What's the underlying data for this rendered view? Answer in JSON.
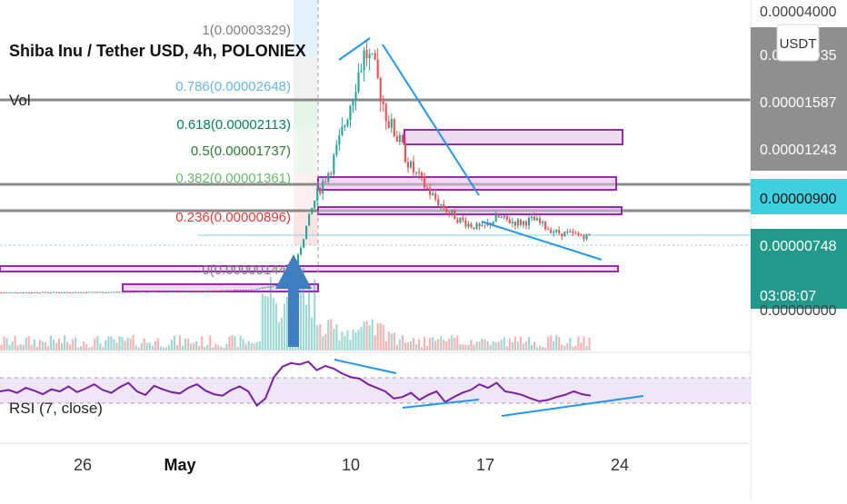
{
  "header": {
    "title": "Shiba Inu / Tether USD, 4h, POLONIEX",
    "volume_label": "Vol",
    "rsi_label": "RSI (7, close)"
  },
  "currency_button": "USDT",
  "price_scale": {
    "labels": [
      "0.00004000",
      "0.00001935",
      "0.00001587",
      "0.00001243",
      "0.00000900",
      "0.00000748",
      "0.00000000"
    ],
    "current_price": "0.00000748",
    "countdown": "03:08:07"
  },
  "time_axis": {
    "labels": [
      "26",
      "May",
      "10",
      "17",
      "24"
    ]
  },
  "colors": {
    "up": "#26a69a",
    "down": "#ef5350",
    "rsi_line": "#7b1fa2",
    "trendline": "#2196f3",
    "zone_border": "#9c27b0",
    "zone_fill": "#e1bee7",
    "level_line": "#8a8a8a",
    "arrow": "#3f7fbf",
    "axis_badge_gray": "#8f8f8f",
    "axis_badge_cyan": "#3fd0e0",
    "axis_badge_teal": "#22998a",
    "fib_1": "#808080",
    "fib_786": "#64b5f6",
    "fib_618": "#087f5b",
    "fib_5": "#2e7d32",
    "fib_382": "#66bb6a",
    "fib_236": "#e53935",
    "fib_0": "#808080"
  },
  "chart_data": {
    "type": "candlestick",
    "symbol": "Shiba Inu / Tether USD",
    "interval": "4h",
    "exchange": "POLONIEX",
    "x_ticks": [
      "26",
      "May",
      "10",
      "17",
      "24"
    ],
    "price_axis_labels": [
      "0.00004000",
      "0.00001935",
      "0.00001587",
      "0.00001243",
      "0.00000900",
      "0.00000748",
      "0.00000000"
    ],
    "current_price": 7.48e-06,
    "fib_retracement": [
      {
        "level": "1",
        "price": "0.00003329",
        "color": "#808080"
      },
      {
        "level": "0.786",
        "price": "0.00002648",
        "color": "#64b5f6"
      },
      {
        "level": "0.618",
        "price": "0.00002113",
        "color": "#087f5b"
      },
      {
        "level": "0.5",
        "price": "0.00001737",
        "color": "#2e7d32"
      },
      {
        "level": "0.382",
        "price": "0.00001361",
        "color": "#66bb6a"
      },
      {
        "level": "0.236",
        "price": "0.00000896",
        "color": "#e53935"
      },
      {
        "level": "0",
        "price": "0.00000144",
        "color": "#808080"
      }
    ],
    "price_path": [
      [
        0.0,
        1e-07
      ],
      [
        0.1,
        1.2e-07
      ],
      [
        0.2,
        2e-07
      ],
      [
        0.26,
        3e-07
      ],
      [
        0.32,
        5e-07
      ],
      [
        0.355,
        1.2e-06
      ],
      [
        0.372,
        3e-06
      ],
      [
        0.385,
        8e-06
      ],
      [
        0.4,
        1.3e-05
      ],
      [
        0.42,
        1.7e-05
      ],
      [
        0.435,
        2.2e-05
      ],
      [
        0.45,
        2.8e-05
      ],
      [
        0.462,
        3.2e-05
      ],
      [
        0.475,
        2.9e-05
      ],
      [
        0.49,
        2.3e-05
      ],
      [
        0.505,
        2e-05
      ],
      [
        0.52,
        1.65e-05
      ],
      [
        0.535,
        1.45e-05
      ],
      [
        0.55,
        1.25e-05
      ],
      [
        0.565,
        1.1e-05
      ],
      [
        0.58,
        9.8e-06
      ],
      [
        0.595,
        9e-06
      ],
      [
        0.61,
        8.5e-06
      ],
      [
        0.63,
        1e-05
      ],
      [
        0.645,
        9.5e-06
      ],
      [
        0.66,
        9.3e-06
      ],
      [
        0.675,
        9.7e-06
      ],
      [
        0.69,
        8.8e-06
      ],
      [
        0.705,
        8e-06
      ],
      [
        0.72,
        7.8e-06
      ],
      [
        0.735,
        7.6e-06
      ],
      [
        0.75,
        7.48e-06
      ]
    ],
    "rsi": {
      "period": 7,
      "source": "close",
      "band_upper": 70,
      "band_lower": 30,
      "values": [
        50,
        52,
        48,
        55,
        51,
        46,
        53,
        50,
        57,
        49,
        54,
        60,
        52,
        48,
        56,
        62,
        50,
        45,
        58,
        53,
        49,
        47,
        55,
        60,
        51,
        46,
        44,
        52,
        57,
        50,
        30,
        40,
        70,
        85,
        90,
        88,
        92,
        80,
        86,
        82,
        75,
        70,
        68,
        60,
        55,
        50,
        40,
        42,
        48,
        38,
        45,
        50,
        35,
        42,
        48,
        52,
        60,
        55,
        62,
        50,
        48,
        45,
        40,
        36,
        38,
        42,
        45,
        50,
        46,
        44
      ]
    }
  }
}
